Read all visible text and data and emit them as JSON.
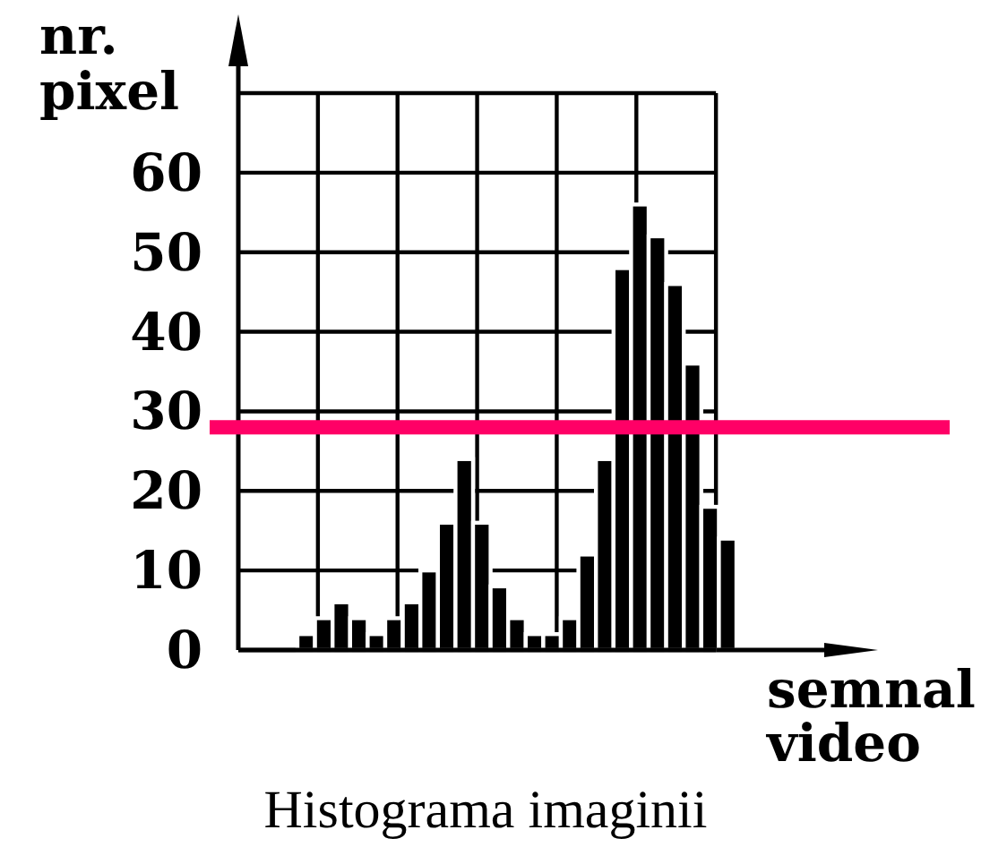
{
  "chart_data": {
    "type": "bar",
    "title": "Histograma imaginii",
    "xlabel": "semnal video",
    "ylabel": "nr. pixel",
    "categories": [
      null,
      null,
      null,
      null,
      null,
      null,
      null,
      null,
      null,
      null,
      null,
      null,
      null,
      null,
      null,
      null,
      null,
      null,
      null,
      null,
      null,
      null,
      null,
      null,
      null
    ],
    "values": [
      2,
      4,
      6,
      4,
      2,
      4,
      6,
      10,
      16,
      24,
      16,
      8,
      4,
      2,
      2,
      4,
      12,
      24,
      48,
      56,
      52,
      46,
      36,
      18,
      14
    ],
    "color": "#000000",
    "ylim": [
      0,
      70
    ],
    "yticks": [
      0,
      10,
      20,
      30,
      40,
      50,
      60,
      {
        "value": 70,
        "label": null
      }
    ],
    "grid": true,
    "tick_labels": "y",
    "ref_lines": [
      {
        "axis": "y",
        "value": 28,
        "color": "#ff0066"
      }
    ]
  }
}
